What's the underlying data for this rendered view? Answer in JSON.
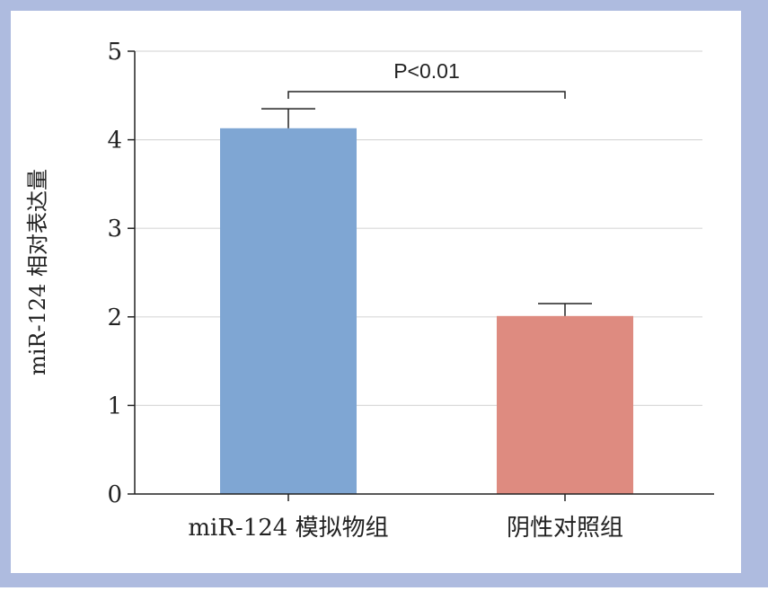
{
  "chart_data": {
    "type": "bar",
    "categories": [
      "miR-124 模拟物组",
      "阴性对照组"
    ],
    "values": [
      4.13,
      2.01
    ],
    "error": [
      0.22,
      0.14
    ],
    "xlabel": "",
    "ylabel": "miR-124 相对表达量",
    "ylim": [
      0,
      5
    ],
    "yticks": [
      "0",
      "1",
      "2",
      "3",
      "4",
      "5"
    ],
    "grid": true,
    "annotation": "P<0.01",
    "colors": {
      "frame_background": "#aebbdf",
      "plot_background": "#ffffff",
      "bars": [
        "#7fa6d3",
        "#de8b80"
      ],
      "gridline": "#d9d9d9",
      "axis": "#222222"
    }
  }
}
